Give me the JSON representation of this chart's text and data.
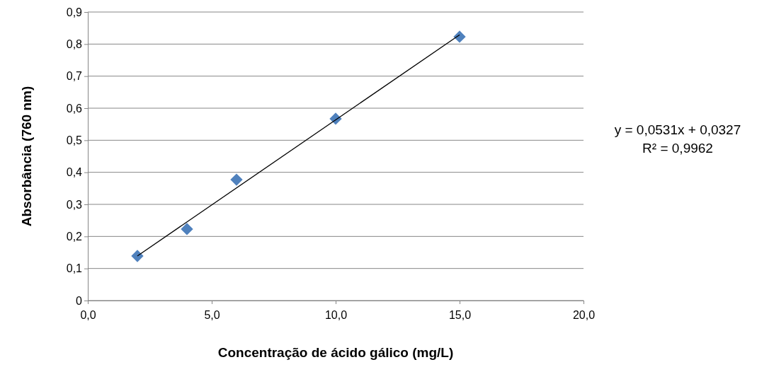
{
  "chart_data": {
    "type": "scatter",
    "xlabel": "Concentração  de ácido gálico (mg/L)",
    "ylabel": "Absorbância (760 nm)",
    "series": [
      {
        "color": "#4f81bd",
        "marker": "diamond",
        "x": [
          2,
          4,
          6,
          10,
          15
        ],
        "values": [
          0.139,
          0.223,
          0.377,
          0.567,
          0.823
        ]
      },
      {
        "type": "line",
        "color": "#000000",
        "marker": "none",
        "x": [
          2,
          15
        ],
        "values": [
          0.139,
          0.829
        ]
      }
    ],
    "xlim": [
      0,
      20
    ],
    "xticks": [
      {
        "value": 0,
        "label": "0,0"
      },
      {
        "value": 5,
        "label": "5,0"
      },
      {
        "value": 10,
        "label": "10,0"
      },
      {
        "value": 15,
        "label": "15,0"
      },
      {
        "value": 20,
        "label": "20,0"
      }
    ],
    "ylim": [
      0,
      0.9
    ],
    "yticks": [
      0,
      {
        "value": 0.1,
        "label": "0,1"
      },
      {
        "value": 0.2,
        "label": "0,2"
      },
      {
        "value": 0.3,
        "label": "0,3"
      },
      {
        "value": 0.4,
        "label": "0,4"
      },
      {
        "value": 0.5,
        "label": "0,5"
      },
      {
        "value": 0.6,
        "label": "0,6"
      },
      {
        "value": 0.7,
        "label": "0,7"
      },
      {
        "value": 0.8,
        "label": "0,8"
      },
      {
        "value": 0.9,
        "label": "0,9"
      }
    ],
    "grid": "y",
    "annotations": [
      "y = 0,0531x + 0,0327",
      "R² = 0,9962"
    ]
  }
}
